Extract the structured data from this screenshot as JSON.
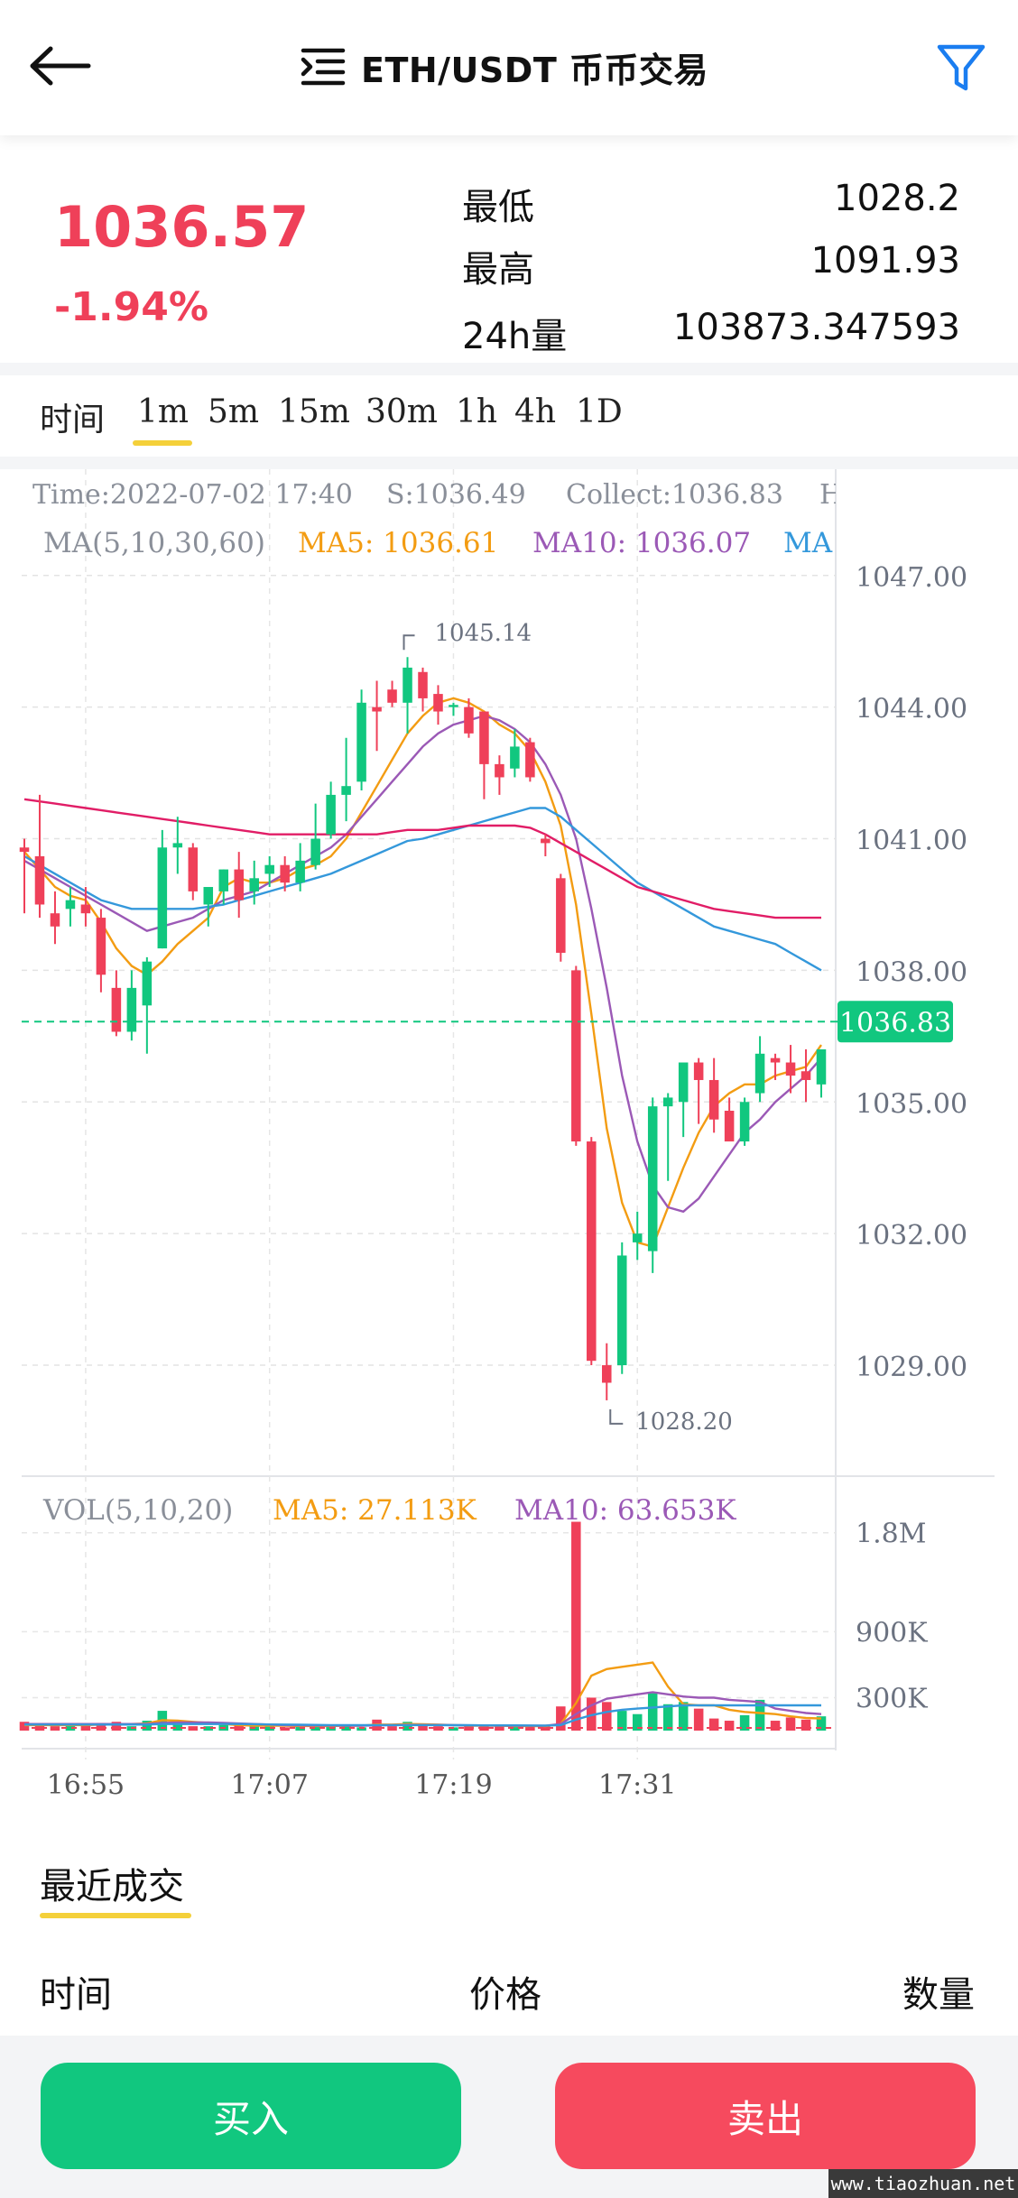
{
  "header": {
    "title": "ETH/USDT 币币交易",
    "back_icon": "back-arrow-icon",
    "menu_icon": "list-menu-icon",
    "filter_icon": "filter-icon",
    "accent_color": "#1a7df0"
  },
  "ticker": {
    "last_price": "1036.57",
    "change_percent": "-1.94%",
    "low_label": "最低",
    "low_value": "1028.2",
    "high_label": "最高",
    "high_value": "1091.93",
    "volume_label": "24h量",
    "volume_value": "103873.347593",
    "down_color": "#ef4059",
    "up_color": "#11c77f"
  },
  "timeframes": {
    "label": "时间",
    "items": [
      "1m",
      "5m",
      "15m",
      "30m",
      "1h",
      "4h",
      "1D"
    ],
    "selected": "1m"
  },
  "chart_data": {
    "type": "candlestick",
    "info_line": {
      "time": "Time:2022-07-02 17:40",
      "s": "S:1036.49",
      "collect": "Collect:1036.83",
      "truncated": "H"
    },
    "ma_legend": {
      "label": "MA(5,10,30,60)",
      "ma5": "MA5: 1036.61",
      "ma10": "MA10: 1036.07",
      "ma30_truncated": "MA"
    },
    "price_axis": [
      "1047.00",
      "1044.00",
      "1041.00",
      "1038.00",
      "1035.00",
      "1032.00",
      "1029.00"
    ],
    "ylim": [
      1026.8,
      1048.6
    ],
    "current_price_tag": "1036.83",
    "current_price": 1036.83,
    "max_marker": "1045.14",
    "min_marker": "1028.20",
    "time_axis": [
      "16:55",
      "17:07",
      "17:19",
      "17:31"
    ],
    "time_axis_index": [
      4,
      16,
      28,
      40
    ],
    "candles": [
      {
        "o": 1040.8,
        "h": 1041.0,
        "l": 1039.3,
        "c": 1040.7
      },
      {
        "o": 1040.6,
        "h": 1042.0,
        "l": 1039.2,
        "c": 1039.5
      },
      {
        "o": 1039.3,
        "h": 1039.8,
        "l": 1038.6,
        "c": 1039.0
      },
      {
        "o": 1039.4,
        "h": 1039.9,
        "l": 1039.0,
        "c": 1039.6
      },
      {
        "o": 1039.5,
        "h": 1039.9,
        "l": 1039.0,
        "c": 1039.3
      },
      {
        "o": 1039.2,
        "h": 1039.4,
        "l": 1037.5,
        "c": 1037.9
      },
      {
        "o": 1037.6,
        "h": 1038.0,
        "l": 1036.5,
        "c": 1036.6
      },
      {
        "o": 1036.6,
        "h": 1038.0,
        "l": 1036.4,
        "c": 1037.6
      },
      {
        "o": 1037.2,
        "h": 1038.3,
        "l": 1036.1,
        "c": 1038.2
      },
      {
        "o": 1038.5,
        "h": 1041.2,
        "l": 1038.5,
        "c": 1040.8
      },
      {
        "o": 1040.8,
        "h": 1041.5,
        "l": 1040.2,
        "c": 1040.9
      },
      {
        "o": 1040.8,
        "h": 1040.9,
        "l": 1039.6,
        "c": 1039.8
      },
      {
        "o": 1039.5,
        "h": 1039.8,
        "l": 1039.0,
        "c": 1039.9
      },
      {
        "o": 1039.8,
        "h": 1040.3,
        "l": 1039.5,
        "c": 1040.3
      },
      {
        "o": 1040.3,
        "h": 1040.7,
        "l": 1039.2,
        "c": 1039.6
      },
      {
        "o": 1039.8,
        "h": 1040.5,
        "l": 1039.5,
        "c": 1040.1
      },
      {
        "o": 1040.2,
        "h": 1040.6,
        "l": 1039.9,
        "c": 1040.4
      },
      {
        "o": 1040.4,
        "h": 1040.6,
        "l": 1039.8,
        "c": 1040.0
      },
      {
        "o": 1040.0,
        "h": 1040.9,
        "l": 1039.8,
        "c": 1040.5
      },
      {
        "o": 1040.4,
        "h": 1041.8,
        "l": 1040.3,
        "c": 1041.0
      },
      {
        "o": 1041.1,
        "h": 1042.3,
        "l": 1041.0,
        "c": 1042.0
      },
      {
        "o": 1042.0,
        "h": 1043.3,
        "l": 1041.4,
        "c": 1042.2
      },
      {
        "o": 1042.3,
        "h": 1044.4,
        "l": 1042.1,
        "c": 1044.1
      },
      {
        "o": 1044.0,
        "h": 1044.6,
        "l": 1043.0,
        "c": 1043.9
      },
      {
        "o": 1044.4,
        "h": 1044.6,
        "l": 1044.0,
        "c": 1044.1
      },
      {
        "o": 1044.1,
        "h": 1045.14,
        "l": 1043.4,
        "c": 1044.9
      },
      {
        "o": 1044.8,
        "h": 1044.9,
        "l": 1043.9,
        "c": 1044.2
      },
      {
        "o": 1044.3,
        "h": 1044.5,
        "l": 1043.6,
        "c": 1043.9
      },
      {
        "o": 1044.0,
        "h": 1044.1,
        "l": 1043.8,
        "c": 1044.05
      },
      {
        "o": 1044.0,
        "h": 1044.2,
        "l": 1043.3,
        "c": 1043.4
      },
      {
        "o": 1043.9,
        "h": 1043.9,
        "l": 1041.9,
        "c": 1042.7
      },
      {
        "o": 1042.7,
        "h": 1042.9,
        "l": 1042.0,
        "c": 1042.4
      },
      {
        "o": 1042.6,
        "h": 1043.5,
        "l": 1042.4,
        "c": 1043.1
      },
      {
        "o": 1043.2,
        "h": 1043.3,
        "l": 1042.3,
        "c": 1042.4
      },
      {
        "o": 1041.0,
        "h": 1041.1,
        "l": 1040.6,
        "c": 1040.9
      },
      {
        "o": 1040.1,
        "h": 1040.2,
        "l": 1038.2,
        "c": 1038.4
      },
      {
        "o": 1038.0,
        "h": 1038.1,
        "l": 1034.0,
        "c": 1034.1
      },
      {
        "o": 1034.1,
        "h": 1034.2,
        "l": 1029.0,
        "c": 1029.1
      },
      {
        "o": 1029.0,
        "h": 1029.5,
        "l": 1028.2,
        "c": 1028.6
      },
      {
        "o": 1029.0,
        "h": 1031.8,
        "l": 1028.8,
        "c": 1031.5
      },
      {
        "o": 1031.8,
        "h": 1032.5,
        "l": 1031.4,
        "c": 1032.0
      },
      {
        "o": 1031.6,
        "h": 1035.1,
        "l": 1031.1,
        "c": 1034.9
      },
      {
        "o": 1034.9,
        "h": 1035.2,
        "l": 1033.2,
        "c": 1035.1
      },
      {
        "o": 1035.0,
        "h": 1035.7,
        "l": 1034.2,
        "c": 1035.9
      },
      {
        "o": 1035.9,
        "h": 1036.0,
        "l": 1034.5,
        "c": 1035.5
      },
      {
        "o": 1035.5,
        "h": 1036.0,
        "l": 1034.3,
        "c": 1034.6
      },
      {
        "o": 1034.8,
        "h": 1035.1,
        "l": 1034.2,
        "c": 1034.1
      },
      {
        "o": 1034.1,
        "h": 1035.1,
        "l": 1034.0,
        "c": 1035.0
      },
      {
        "o": 1035.2,
        "h": 1036.5,
        "l": 1035.0,
        "c": 1036.1
      },
      {
        "o": 1036.0,
        "h": 1036.1,
        "l": 1035.5,
        "c": 1035.9
      },
      {
        "o": 1035.9,
        "h": 1036.3,
        "l": 1035.2,
        "c": 1035.6
      },
      {
        "o": 1035.7,
        "h": 1036.2,
        "l": 1035.0,
        "c": 1035.5
      },
      {
        "o": 1035.4,
        "h": 1036.0,
        "l": 1035.1,
        "c": 1036.2
      }
    ],
    "ma_lines": [
      {
        "name": "MA5",
        "color": "#f39c12",
        "values": [
          1040.7,
          1040.3,
          1039.9,
          1039.7,
          1039.6,
          1039.1,
          1038.5,
          1038.1,
          1037.9,
          1038.2,
          1038.6,
          1038.9,
          1039.2,
          1039.9,
          1040.1,
          1040.0,
          1040.0,
          1040.1,
          1040.3,
          1040.4,
          1040.6,
          1041.0,
          1041.6,
          1042.2,
          1042.8,
          1043.4,
          1043.8,
          1044.1,
          1044.2,
          1044.1,
          1043.9,
          1043.6,
          1043.4,
          1043.0,
          1042.3,
          1041.3,
          1039.5,
          1037.0,
          1034.4,
          1032.7,
          1031.8,
          1031.7,
          1032.6,
          1033.5,
          1034.3,
          1034.9,
          1035.2,
          1035.4,
          1035.4,
          1035.6,
          1035.7,
          1035.8,
          1036.3
        ]
      },
      {
        "name": "MA10",
        "color": "#9b59b6",
        "values": [
          1040.5,
          1040.3,
          1040.1,
          1039.9,
          1039.7,
          1039.5,
          1039.3,
          1039.1,
          1038.9,
          1039.0,
          1039.1,
          1039.2,
          1039.4,
          1039.6,
          1039.7,
          1039.8,
          1040.0,
          1040.2,
          1040.4,
          1040.6,
          1040.8,
          1041.1,
          1041.5,
          1041.9,
          1042.3,
          1042.7,
          1043.1,
          1043.4,
          1043.6,
          1043.7,
          1043.8,
          1043.7,
          1043.5,
          1043.2,
          1042.7,
          1042.0,
          1041.0,
          1039.4,
          1037.6,
          1035.6,
          1034.1,
          1033.1,
          1032.6,
          1032.5,
          1032.8,
          1033.3,
          1033.8,
          1034.3,
          1034.6,
          1035.0,
          1035.3,
          1035.6,
          1036.0
        ]
      },
      {
        "name": "MA30",
        "color": "#3498db",
        "values": [
          1040.6,
          1040.4,
          1040.2,
          1040.0,
          1039.8,
          1039.6,
          1039.5,
          1039.4,
          1039.4,
          1039.4,
          1039.4,
          1039.4,
          1039.45,
          1039.5,
          1039.6,
          1039.7,
          1039.8,
          1039.9,
          1040.0,
          1040.1,
          1040.2,
          1040.35,
          1040.5,
          1040.65,
          1040.8,
          1040.95,
          1041.0,
          1041.1,
          1041.2,
          1041.3,
          1041.4,
          1041.5,
          1041.6,
          1041.7,
          1041.7,
          1041.5,
          1041.2,
          1040.9,
          1040.6,
          1040.3,
          1040.0,
          1039.8,
          1039.6,
          1039.4,
          1039.2,
          1039.0,
          1038.9,
          1038.8,
          1038.7,
          1038.6,
          1038.4,
          1038.2,
          1038.0
        ]
      },
      {
        "name": "MA60",
        "color": "#e11d66",
        "values": [
          1041.9,
          1041.85,
          1041.8,
          1041.75,
          1041.7,
          1041.65,
          1041.6,
          1041.55,
          1041.5,
          1041.45,
          1041.4,
          1041.35,
          1041.3,
          1041.25,
          1041.2,
          1041.15,
          1041.1,
          1041.1,
          1041.1,
          1041.1,
          1041.1,
          1041.1,
          1041.1,
          1041.1,
          1041.15,
          1041.2,
          1041.2,
          1041.2,
          1041.25,
          1041.3,
          1041.3,
          1041.3,
          1041.3,
          1041.25,
          1041.1,
          1040.9,
          1040.7,
          1040.5,
          1040.3,
          1040.1,
          1039.9,
          1039.8,
          1039.7,
          1039.6,
          1039.5,
          1039.4,
          1039.35,
          1039.3,
          1039.25,
          1039.2,
          1039.2,
          1039.2,
          1039.2
        ]
      }
    ],
    "volume": {
      "legend_label": "VOL(5,10,20)",
      "ma5": "MA5: 27.113K",
      "ma10": "MA10: 63.653K",
      "axis_ticks": [
        "1.8M",
        "900K",
        "300K"
      ],
      "axis_values": [
        1800000,
        900000,
        300000
      ],
      "ymax": 2200000,
      "values": [
        80000,
        60000,
        40000,
        60000,
        50000,
        70000,
        80000,
        40000,
        90000,
        180000,
        60000,
        40000,
        40000,
        50000,
        60000,
        40000,
        40000,
        30000,
        40000,
        50000,
        40000,
        50000,
        30000,
        100000,
        40000,
        80000,
        50000,
        40000,
        30000,
        40000,
        50000,
        40000,
        40000,
        40000,
        40000,
        220000,
        1900000,
        300000,
        260000,
        180000,
        150000,
        340000,
        240000,
        260000,
        200000,
        110000,
        90000,
        140000,
        280000,
        90000,
        120000,
        100000,
        130000
      ],
      "ma5_line": [
        50000,
        50000,
        50000,
        50000,
        50000,
        55000,
        60000,
        60000,
        65000,
        95000,
        90000,
        80000,
        70000,
        60000,
        50000,
        45000,
        45000,
        45000,
        42000,
        42000,
        42000,
        45000,
        45000,
        55000,
        55000,
        60000,
        58000,
        55000,
        50000,
        45000,
        45000,
        45000,
        40000,
        40000,
        40000,
        60000,
        250000,
        500000,
        560000,
        580000,
        600000,
        620000,
        400000,
        240000,
        230000,
        230000,
        190000,
        170000,
        160000,
        150000,
        130000,
        115000,
        110000
      ],
      "ma10_line": [
        60000,
        60000,
        60000,
        60000,
        60000,
        60000,
        60000,
        60000,
        60000,
        70000,
        75000,
        75000,
        75000,
        70000,
        65000,
        60000,
        55000,
        50000,
        48000,
        47000,
        46000,
        46000,
        45000,
        48000,
        50000,
        52000,
        52000,
        52000,
        50000,
        48000,
        47000,
        46000,
        45000,
        44000,
        44000,
        60000,
        150000,
        230000,
        290000,
        310000,
        330000,
        350000,
        330000,
        310000,
        300000,
        300000,
        280000,
        270000,
        260000,
        200000,
        180000,
        160000,
        150000
      ],
      "ma20_line": [
        55000,
        55000,
        55000,
        55000,
        55000,
        55000,
        55000,
        55000,
        55000,
        60000,
        60000,
        60000,
        60000,
        60000,
        60000,
        58000,
        56000,
        55000,
        53000,
        52000,
        50000,
        50000,
        50000,
        50000,
        50000,
        50000,
        50000,
        50000,
        49000,
        49000,
        48000,
        48000,
        48000,
        47000,
        46000,
        50000,
        100000,
        140000,
        170000,
        190000,
        200000,
        210000,
        220000,
        230000,
        230000,
        230000,
        230000,
        230000,
        230000,
        230000,
        230000,
        230000,
        230000
      ]
    }
  },
  "recent_trades": {
    "title": "最近成交",
    "col_time": "时间",
    "col_price": "价格",
    "col_amount": "数量"
  },
  "actions": {
    "buy": "买入",
    "sell": "卖出"
  },
  "watermark": "www.tiaozhuan.net"
}
